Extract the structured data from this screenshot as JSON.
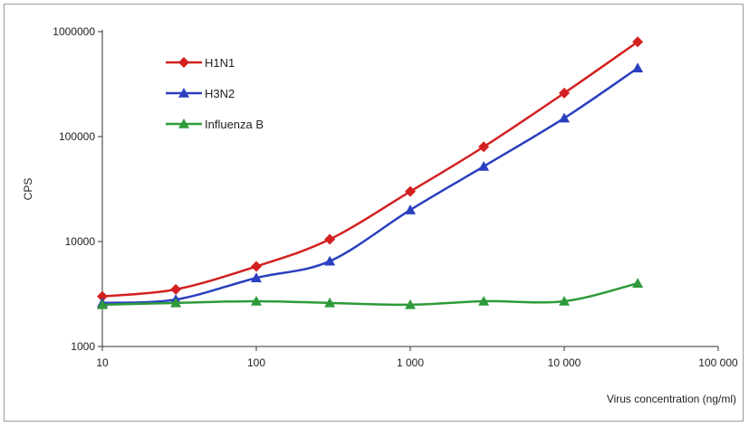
{
  "chart_data": {
    "type": "line",
    "xlabel": "Virus concentration (ng/ml)",
    "ylabel": "CPS",
    "xscale": "log",
    "yscale": "log",
    "xlim": [
      10,
      100000
    ],
    "ylim": [
      1000,
      1000000
    ],
    "grid": false,
    "legend_position": "top-left",
    "x_ticks": [
      {
        "value": 10,
        "label": "10"
      },
      {
        "value": 100,
        "label": "100"
      },
      {
        "value": 1000,
        "label": "1 000"
      },
      {
        "value": 10000,
        "label": "10 000"
      },
      {
        "value": 100000,
        "label": "100 000"
      }
    ],
    "y_ticks": [
      {
        "value": 1000,
        "label": "1000"
      },
      {
        "value": 10000,
        "label": "10000"
      },
      {
        "value": 100000,
        "label": "100000"
      },
      {
        "value": 1000000,
        "label": "1000000"
      }
    ],
    "x": [
      10,
      30,
      100,
      300,
      1000,
      3000,
      10000,
      30000
    ],
    "series": [
      {
        "name": "H1N1",
        "color": "#d42020",
        "marker": "diamond",
        "values": [
          3000,
          3500,
          5800,
          10500,
          30000,
          80000,
          260000,
          800000
        ]
      },
      {
        "name": "H3N2",
        "color": "#2a3fbf",
        "marker": "triangle",
        "values": [
          2600,
          2800,
          4500,
          6500,
          20000,
          52000,
          150000,
          450000
        ]
      },
      {
        "name": "Influenza B",
        "color": "#2e9a3a",
        "marker": "triangle",
        "values": [
          2500,
          2600,
          2700,
          2600,
          2500,
          2700,
          2700,
          4000
        ]
      }
    ]
  }
}
